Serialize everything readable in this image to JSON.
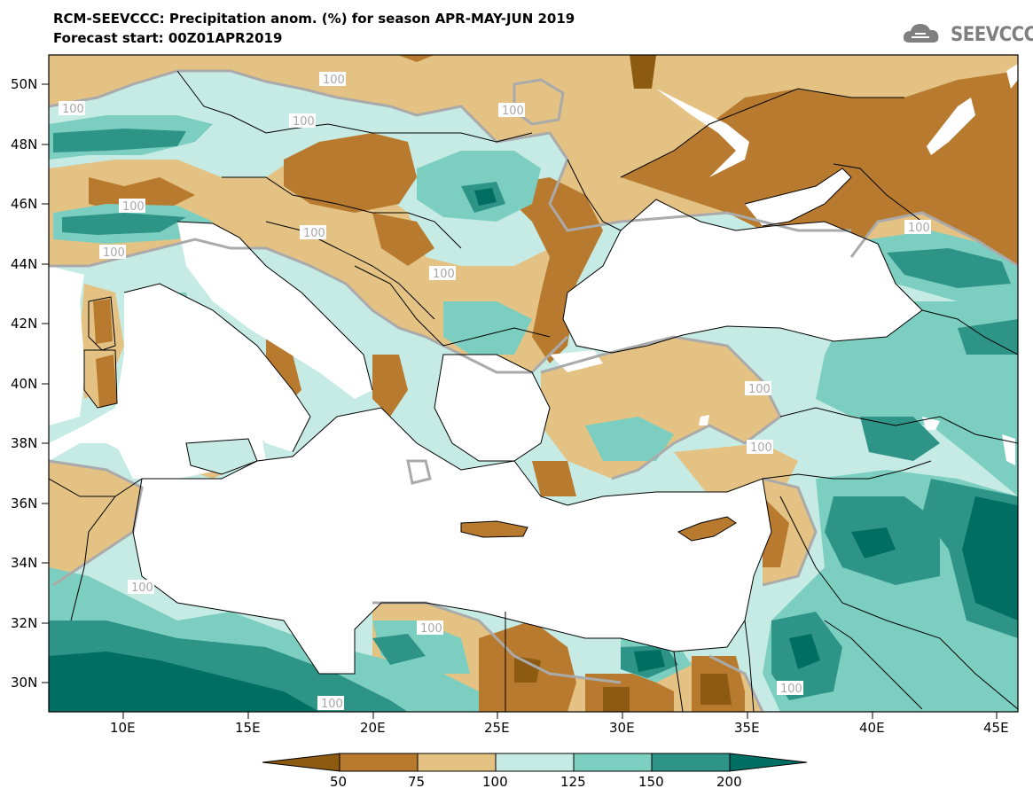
{
  "title": {
    "line1": "RCM-SEEVCCC: Precipitation anom. (%) for season APR-MAY-JUN 2019",
    "line2": "Forecast start: 00Z01APR2019"
  },
  "logo": {
    "text": "SEEVCCC",
    "icon": "cloud-icon"
  },
  "axes": {
    "lat_labels": [
      "50N",
      "48N",
      "46N",
      "44N",
      "42N",
      "40N",
      "38N",
      "36N",
      "34N",
      "32N",
      "30N"
    ],
    "lon_labels": [
      "10E",
      "15E",
      "20E",
      "25E",
      "30E",
      "35E",
      "40E",
      "45E"
    ]
  },
  "contour_label": "100",
  "colorbar": {
    "labels": [
      "50",
      "75",
      "100",
      "125",
      "150",
      "200"
    ],
    "colors": [
      "#8c5a10",
      "#b87a2e",
      "#e3c283",
      "#c6ebe5",
      "#7ccfc0",
      "#2e9488",
      "#006e62"
    ]
  }
}
